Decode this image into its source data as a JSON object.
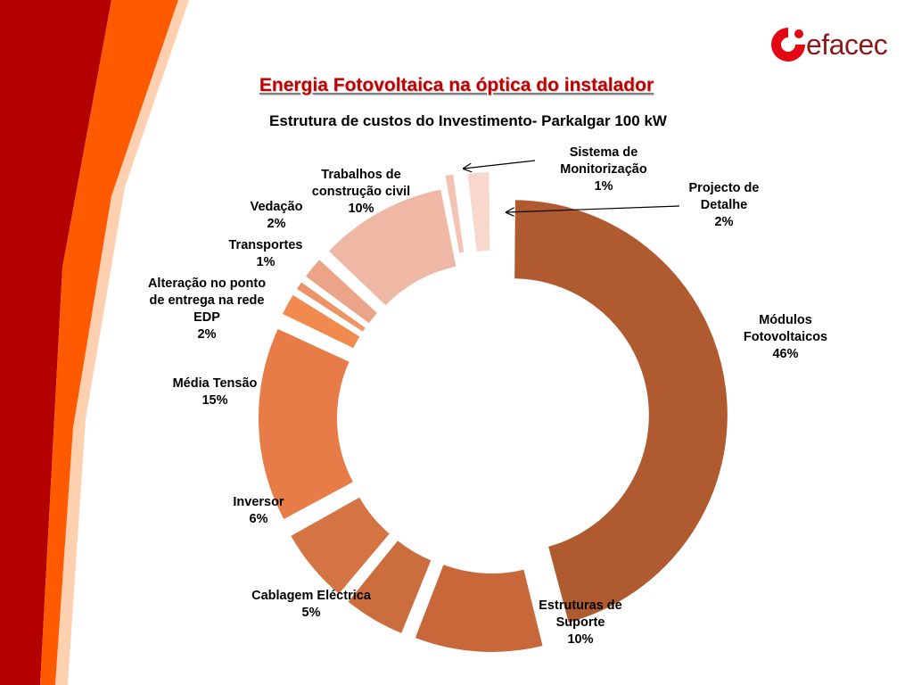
{
  "slide": {
    "title": "Energia Fotovoltaica na óptica do instalador",
    "brand": "efacec",
    "colors": {
      "brand_red": "#c00000",
      "deco_orange": "#ff5a00",
      "deco_dark": "#b00000"
    }
  },
  "chart_data": {
    "type": "pie",
    "variant": "exploded-donut",
    "title": "Estrutura de custos do Investimento- Parkalgar 100 kW",
    "slices": [
      {
        "label": "Módulos Fotovoltaicos",
        "lines": [
          "Módulos",
          "Fotovoltaicos"
        ],
        "value": 46,
        "pct": "46%",
        "color": "#b05a30"
      },
      {
        "label": "Estruturas de Suporte",
        "lines": [
          "Estruturas de",
          "Suporte"
        ],
        "value": 10,
        "pct": "10%",
        "color": "#c8683a"
      },
      {
        "label": "Cablagem Eléctrica",
        "lines": [
          "Cablagem Eléctrica"
        ],
        "value": 5,
        "pct": "5%",
        "color": "#cc6d3e"
      },
      {
        "label": "Inversor",
        "lines": [
          "Inversor"
        ],
        "value": 6,
        "pct": "6%",
        "color": "#d57443"
      },
      {
        "label": "Média Tensão",
        "lines": [
          "Média Tensão"
        ],
        "value": 15,
        "pct": "15%",
        "color": "#e87c48"
      },
      {
        "label": "Alteração no ponto de entrega na rede EDP",
        "lines": [
          "Alteração no ponto",
          "de entrega na rede",
          "EDP"
        ],
        "value": 2,
        "pct": "2%",
        "color": "#f18a4e"
      },
      {
        "label": "Transportes",
        "lines": [
          "Transportes"
        ],
        "value": 1,
        "pct": "1%",
        "color": "#ec9466"
      },
      {
        "label": "Vedação",
        "lines": [
          "Vedação"
        ],
        "value": 2,
        "pct": "2%",
        "color": "#eca488"
      },
      {
        "label": "Trabalhos de construção civil",
        "lines": [
          "Trabalhos de",
          "construção civil"
        ],
        "value": 10,
        "pct": "10%",
        "color": "#efb8a4"
      },
      {
        "label": "Sistema de Monitorização",
        "lines": [
          "Sistema de",
          "Monitorização"
        ],
        "value": 1,
        "pct": "1%",
        "color": "#f3c4b4"
      },
      {
        "label": "Projecto de Detalhe",
        "lines": [
          "Projecto de",
          "Detalhe"
        ],
        "value": 2,
        "pct": "2%",
        "color": "#f8d7cc"
      }
    ]
  }
}
